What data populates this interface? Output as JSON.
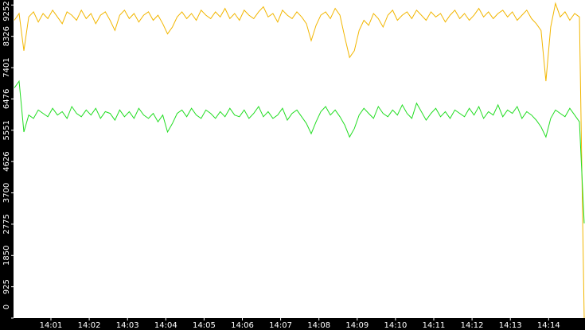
{
  "chart_data": {
    "type": "line",
    "xticks": [
      "14:01",
      "14:02",
      "14:03",
      "14:04",
      "14:05",
      "14:06",
      "14:07",
      "14:08",
      "14:09",
      "14:10",
      "14:11",
      "14:12",
      "14:13",
      "14:14"
    ],
    "ylim": [
      0,
      9400
    ],
    "yticks": [
      0,
      925,
      1850,
      2775,
      3700,
      4626,
      5551,
      6476,
      7401,
      8326,
      9252
    ],
    "series": [
      {
        "color": "#f2b600",
        "values": [
          8800,
          9000,
          7900,
          8900,
          9050,
          8750,
          9000,
          8850,
          9100,
          8900,
          8700,
          9050,
          8950,
          8800,
          9100,
          8850,
          9000,
          8700,
          8950,
          9050,
          8800,
          8500,
          8950,
          9100,
          8850,
          9000,
          8750,
          8950,
          9050,
          8800,
          8950,
          8700,
          8400,
          8600,
          8900,
          9050,
          8850,
          9000,
          8800,
          9100,
          8950,
          8850,
          9050,
          8900,
          9150,
          8850,
          9000,
          8800,
          9100,
          8950,
          8850,
          9050,
          9200,
          8900,
          9000,
          8750,
          9100,
          8950,
          8850,
          9050,
          8900,
          8700,
          8200,
          8650,
          8950,
          9050,
          8850,
          9150,
          8950,
          8300,
          7700,
          7900,
          8500,
          8800,
          8650,
          9000,
          8850,
          8600,
          8950,
          9100,
          8800,
          8950,
          9050,
          8850,
          9100,
          8950,
          8800,
          9050,
          8900,
          9000,
          8750,
          8950,
          9100,
          8850,
          9000,
          8800,
          8950,
          9150,
          8900,
          9050,
          8850,
          9000,
          9100,
          8900,
          9050,
          8800,
          8950,
          9100,
          8850,
          8700,
          8500,
          7000,
          8600,
          9300,
          8900,
          9050,
          8800,
          9000,
          8900,
          0
        ]
      },
      {
        "color": "#22dd22",
        "values": [
          6800,
          7000,
          5500,
          6000,
          5900,
          6150,
          6050,
          5950,
          6200,
          6000,
          6100,
          5900,
          6250,
          6050,
          5950,
          6150,
          6000,
          6200,
          5900,
          6100,
          6050,
          5850,
          6150,
          5950,
          6100,
          5900,
          6200,
          6000,
          5900,
          6050,
          5800,
          6000,
          5500,
          5750,
          6050,
          6150,
          5950,
          6200,
          6000,
          5900,
          6150,
          6050,
          5900,
          6100,
          5950,
          6200,
          6000,
          5950,
          6150,
          5900,
          6050,
          6250,
          5950,
          6100,
          5900,
          6000,
          6200,
          5850,
          6050,
          6150,
          5950,
          5750,
          5450,
          5800,
          6100,
          6250,
          6000,
          6150,
          5950,
          5700,
          5350,
          5600,
          6000,
          6200,
          6050,
          5900,
          6250,
          6050,
          5950,
          6150,
          6000,
          6300,
          6050,
          5900,
          6350,
          6100,
          5850,
          6050,
          6200,
          5950,
          6100,
          5900,
          6150,
          6050,
          5950,
          6200,
          6000,
          6250,
          5900,
          6100,
          6000,
          6300,
          5950,
          6150,
          6050,
          6250,
          5900,
          6100,
          6000,
          5850,
          5650,
          5350,
          5900,
          6150,
          6050,
          5950,
          6200,
          6000,
          5800,
          2800
        ]
      }
    ]
  }
}
